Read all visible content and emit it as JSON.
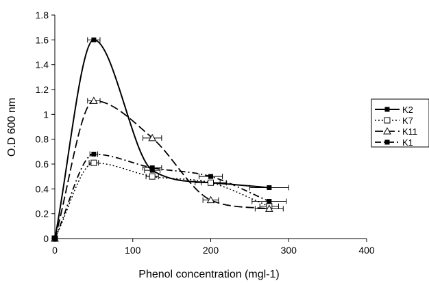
{
  "chart_data": {
    "type": "line",
    "title": "",
    "xlabel": "Phenol concentration (mgl-1)",
    "ylabel": "O.D 600 nm",
    "xlim": [
      0,
      400
    ],
    "ylim": [
      0,
      1.8
    ],
    "xticks": [
      0,
      100,
      200,
      300,
      400
    ],
    "yticks": [
      0,
      0.2,
      0.4,
      0.6,
      0.8,
      1,
      1.2,
      1.4,
      1.6,
      1.8
    ],
    "xtick_labels": [
      "0",
      "100",
      "200",
      "300",
      "400"
    ],
    "ytick_labels": [
      "0",
      "0.2",
      "0.4",
      "0.6",
      "0.8",
      "1",
      "1.2",
      "1.4",
      "1.6",
      "1.8"
    ],
    "grid": false,
    "legend_position": "right",
    "series": [
      {
        "name": "K2",
        "line_style": "solid",
        "marker": "filled-square",
        "color": "#000000",
        "x": [
          0,
          50,
          125,
          200,
          275
        ],
        "y": [
          0,
          1.6,
          0.55,
          0.45,
          0.41
        ],
        "x_error": [
          0,
          8,
          10,
          20,
          25
        ]
      },
      {
        "name": "K7",
        "line_style": "dotted",
        "marker": "open-square",
        "color": "#000000",
        "x": [
          0,
          50,
          125,
          200,
          275
        ],
        "y": [
          0,
          0.61,
          0.5,
          0.45,
          0.26
        ],
        "x_error": [
          0,
          6,
          8,
          12,
          12
        ]
      },
      {
        "name": "K11",
        "line_style": "long-dash",
        "marker": "open-triangle",
        "color": "#000000",
        "x": [
          0,
          50,
          125,
          200,
          275
        ],
        "y": [
          0,
          1.11,
          0.81,
          0.31,
          0.24
        ],
        "x_error": [
          0,
          8,
          12,
          10,
          18
        ]
      },
      {
        "name": "K1",
        "line_style": "dash-dot",
        "marker": "filled-square",
        "color": "#000000",
        "x": [
          0,
          50,
          125,
          200,
          275
        ],
        "y": [
          0,
          0.68,
          0.57,
          0.5,
          0.3
        ],
        "x_error": [
          0,
          5,
          12,
          15,
          22
        ]
      }
    ]
  }
}
